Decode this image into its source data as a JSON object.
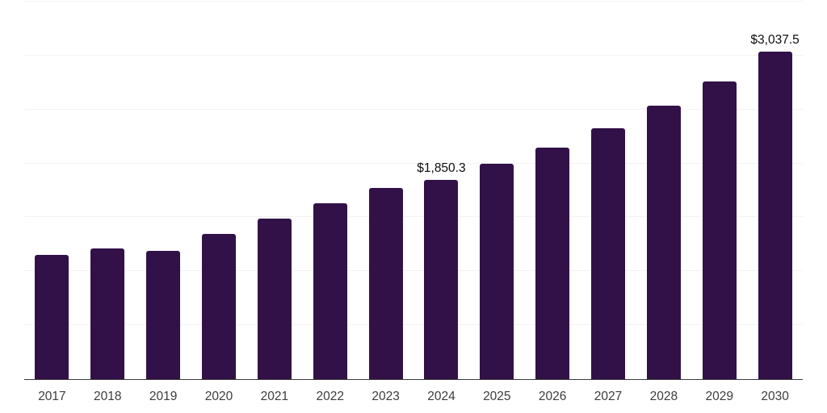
{
  "page": {
    "background_color": "#ffffff"
  },
  "chart_data": {
    "type": "bar",
    "title": "",
    "xlabel": "",
    "ylabel": "",
    "categories": [
      "2017",
      "2018",
      "2019",
      "2020",
      "2021",
      "2022",
      "2023",
      "2024",
      "2025",
      "2026",
      "2027",
      "2028",
      "2029",
      "2030"
    ],
    "values": [
      1150,
      1210,
      1188,
      1344,
      1492,
      1627,
      1776,
      1850.3,
      2000,
      2150,
      2328,
      2537,
      2760,
      3037.5
    ],
    "data_labels": [
      "",
      "",
      "",
      "",
      "",
      "",
      "",
      "$1,850.3",
      "",
      "",
      "",
      "",
      "",
      "$3,037.5"
    ],
    "ylim": [
      0,
      3500
    ],
    "gridline_interval": 500,
    "grid": "horizontal",
    "legend_visible": false,
    "y_tick_labels_visible": false,
    "colors": {
      "bar": "#311148",
      "gridline": "#f2f2f2",
      "axis_line": "#3a3a3a",
      "x_tick_label": "#3c3c3c",
      "data_label": "#0d0d0d"
    }
  }
}
